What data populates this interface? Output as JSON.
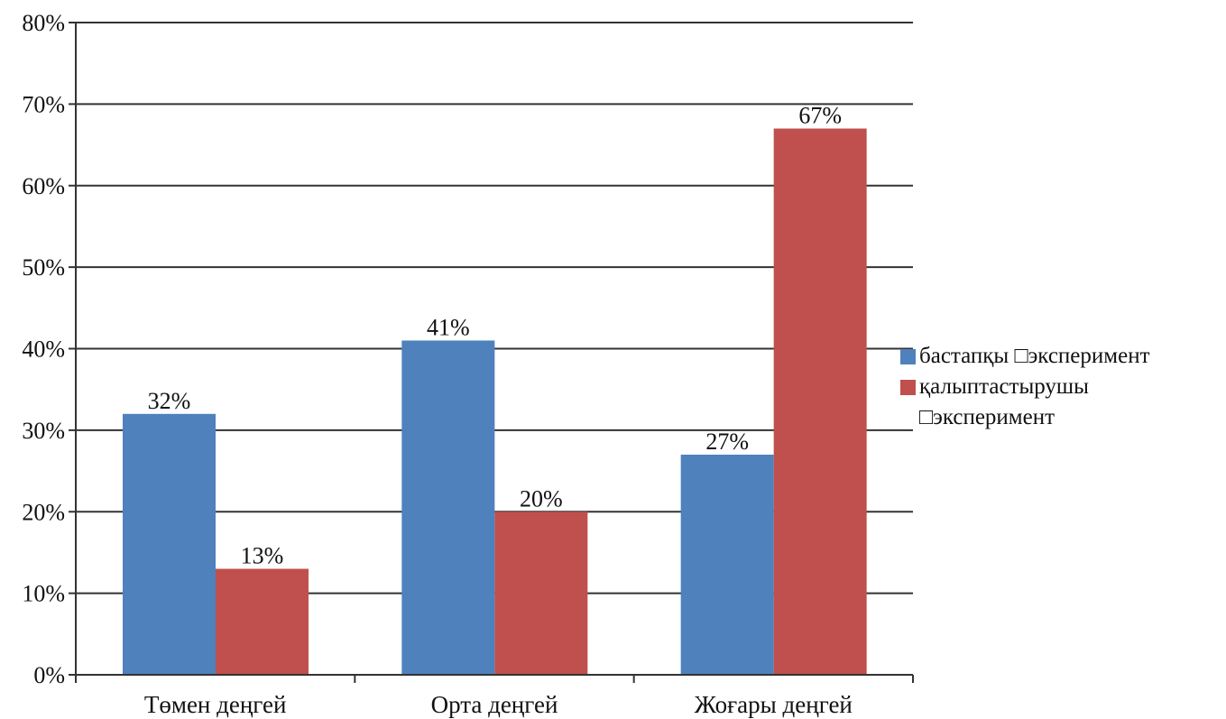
{
  "chart_data": {
    "type": "bar",
    "title": "",
    "xlabel": "",
    "ylabel": "",
    "categories": [
      "Төмен деңгей",
      "Орта деңгей",
      "Жоғары деңгей"
    ],
    "series": [
      {
        "name": "бастапқы □эксперимент",
        "color": "#4f81bd",
        "values": [
          32,
          41,
          27
        ],
        "labels": [
          "32%",
          "41%",
          "27%"
        ]
      },
      {
        "name": "қалыптастырушы □эксперимент",
        "color": "#c0504d",
        "values": [
          13,
          20,
          67
        ],
        "labels": [
          "13%",
          "20%",
          "67%"
        ]
      }
    ],
    "ylim": [
      0,
      80
    ],
    "yticks": [
      0,
      10,
      20,
      30,
      40,
      50,
      60,
      70,
      80
    ],
    "ytick_labels": [
      "0%",
      "10%",
      "20%",
      "30%",
      "40%",
      "50%",
      "60%",
      "70%",
      "80%"
    ],
    "grid": true,
    "legend": "right"
  }
}
